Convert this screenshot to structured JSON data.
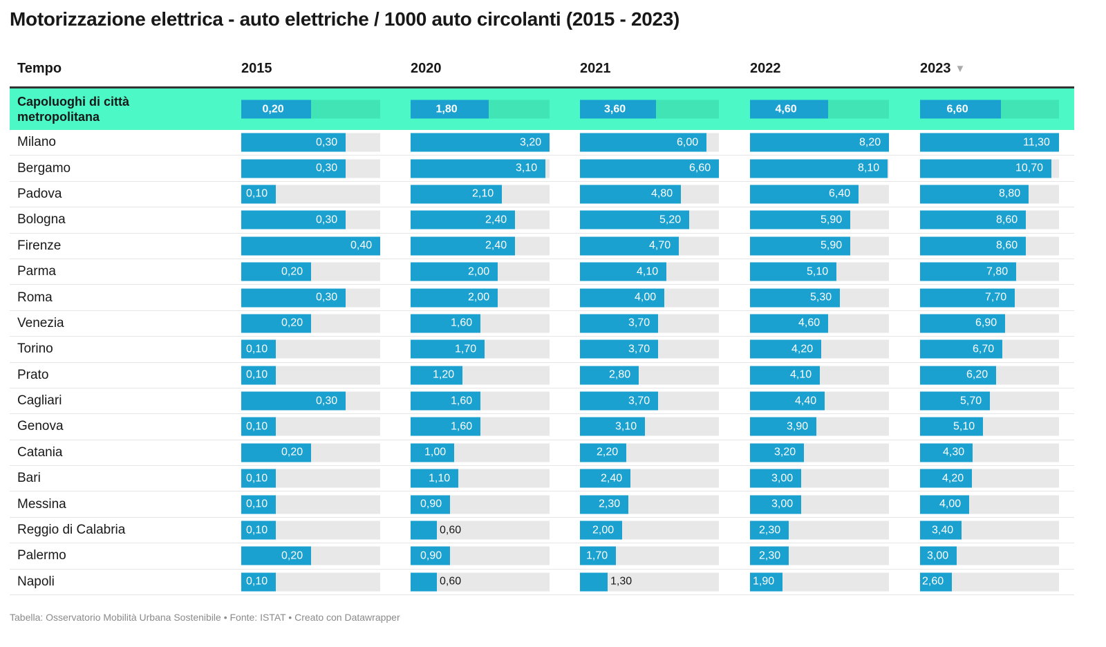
{
  "title": "Motorizzazione elettrica - auto elettriche / 1000 auto circolanti (2015 - 2023)",
  "header": {
    "label": "Tempo",
    "sort_icon": "sort-down-triangle-icon"
  },
  "footer": "Tabella: Osservatorio Mobilità Urbana Sostenibile • Fonte: ISTAT • Creato con Datawrapper",
  "colors": {
    "bar": "#1aa1d0",
    "bar_track": "#e8e8e8",
    "highlight_row": "#4cf9c6",
    "highlight_track": "#41e4b5"
  },
  "chart_data": {
    "type": "table",
    "columns": [
      "2015",
      "2020",
      "2021",
      "2022",
      "2023"
    ],
    "sorted_by": "2023",
    "sort_order": "descending",
    "column_max": [
      0.4,
      3.2,
      6.6,
      8.2,
      11.3
    ],
    "rows": [
      {
        "label": "Capoluoghi di città metropolitana",
        "highlight": true,
        "values": [
          0.2,
          1.8,
          3.6,
          4.6,
          6.6
        ],
        "display": [
          "0,20",
          "1,80",
          "3,60",
          "4,60",
          "6,60"
        ]
      },
      {
        "label": "Milano",
        "values": [
          0.3,
          3.2,
          6.0,
          8.2,
          11.3
        ],
        "display": [
          "0,30",
          "3,20",
          "6,00",
          "8,20",
          "11,30"
        ]
      },
      {
        "label": "Bergamo",
        "values": [
          0.3,
          3.1,
          6.6,
          8.1,
          10.7
        ],
        "display": [
          "0,30",
          "3,10",
          "6,60",
          "8,10",
          "10,70"
        ]
      },
      {
        "label": "Padova",
        "values": [
          0.1,
          2.1,
          4.8,
          6.4,
          8.8
        ],
        "display": [
          "0,10",
          "2,10",
          "4,80",
          "6,40",
          "8,80"
        ]
      },
      {
        "label": "Bologna",
        "values": [
          0.3,
          2.4,
          5.2,
          5.9,
          8.6
        ],
        "display": [
          "0,30",
          "2,40",
          "5,20",
          "5,90",
          "8,60"
        ]
      },
      {
        "label": "Firenze",
        "values": [
          0.4,
          2.4,
          4.7,
          5.9,
          8.6
        ],
        "display": [
          "0,40",
          "2,40",
          "4,70",
          "5,90",
          "8,60"
        ]
      },
      {
        "label": "Parma",
        "values": [
          0.2,
          2.0,
          4.1,
          5.1,
          7.8
        ],
        "display": [
          "0,20",
          "2,00",
          "4,10",
          "5,10",
          "7,80"
        ]
      },
      {
        "label": "Roma",
        "values": [
          0.3,
          2.0,
          4.0,
          5.3,
          7.7
        ],
        "display": [
          "0,30",
          "2,00",
          "4,00",
          "5,30",
          "7,70"
        ]
      },
      {
        "label": "Venezia",
        "values": [
          0.2,
          1.6,
          3.7,
          4.6,
          6.9
        ],
        "display": [
          "0,20",
          "1,60",
          "3,70",
          "4,60",
          "6,90"
        ]
      },
      {
        "label": "Torino",
        "values": [
          0.1,
          1.7,
          3.7,
          4.2,
          6.7
        ],
        "display": [
          "0,10",
          "1,70",
          "3,70",
          "4,20",
          "6,70"
        ]
      },
      {
        "label": "Prato",
        "values": [
          0.1,
          1.2,
          2.8,
          4.1,
          6.2
        ],
        "display": [
          "0,10",
          "1,20",
          "2,80",
          "4,10",
          "6,20"
        ]
      },
      {
        "label": "Cagliari",
        "values": [
          0.3,
          1.6,
          3.7,
          4.4,
          5.7
        ],
        "display": [
          "0,30",
          "1,60",
          "3,70",
          "4,40",
          "5,70"
        ]
      },
      {
        "label": "Genova",
        "values": [
          0.1,
          1.6,
          3.1,
          3.9,
          5.1
        ],
        "display": [
          "0,10",
          "1,60",
          "3,10",
          "3,90",
          "5,10"
        ]
      },
      {
        "label": "Catania",
        "values": [
          0.2,
          1.0,
          2.2,
          3.2,
          4.3
        ],
        "display": [
          "0,20",
          "1,00",
          "2,20",
          "3,20",
          "4,30"
        ]
      },
      {
        "label": "Bari",
        "values": [
          0.1,
          1.1,
          2.4,
          3.0,
          4.2
        ],
        "display": [
          "0,10",
          "1,10",
          "2,40",
          "3,00",
          "4,20"
        ]
      },
      {
        "label": "Messina",
        "values": [
          0.1,
          0.9,
          2.3,
          3.0,
          4.0
        ],
        "display": [
          "0,10",
          "0,90",
          "2,30",
          "3,00",
          "4,00"
        ]
      },
      {
        "label": "Reggio di Calabria",
        "values": [
          0.1,
          0.6,
          2.0,
          2.3,
          3.4
        ],
        "display": [
          "0,10",
          "0,60",
          "2,00",
          "2,30",
          "3,40"
        ]
      },
      {
        "label": "Palermo",
        "values": [
          0.2,
          0.9,
          1.7,
          2.3,
          3.0
        ],
        "display": [
          "0,20",
          "0,90",
          "1,70",
          "2,30",
          "3,00"
        ]
      },
      {
        "label": "Napoli",
        "values": [
          0.1,
          0.6,
          1.3,
          1.9,
          2.6
        ],
        "display": [
          "0,10",
          "0,60",
          "1,30",
          "1,90",
          "2,60"
        ]
      }
    ]
  }
}
